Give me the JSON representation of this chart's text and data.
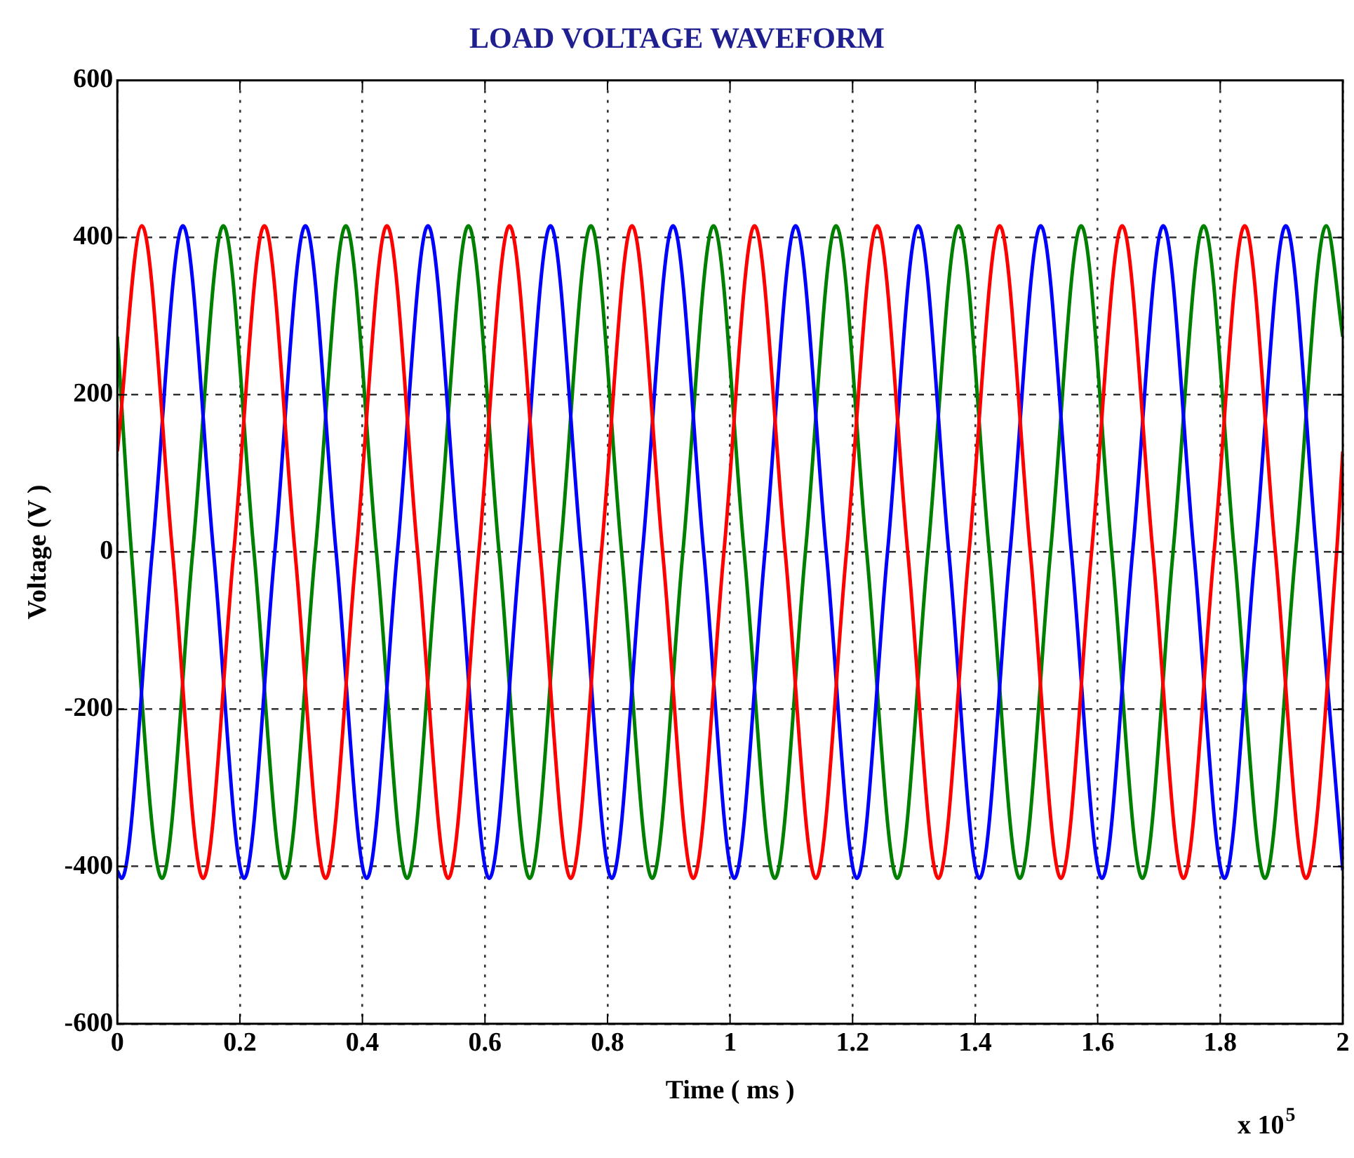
{
  "chart_data": {
    "type": "line",
    "title": "LOAD VOLTAGE WAVEFORM",
    "xlabel": "Time ( ms )",
    "ylabel": "Voltage (V )",
    "annotations": [
      "x 10$^{5}$"
    ],
    "xlim": [
      0,
      2
    ],
    "xticks": [
      0,
      0.2,
      0.4,
      0.6,
      0.8,
      1,
      1.2,
      1.4,
      1.6,
      1.8,
      2
    ],
    "ylim": [
      -600,
      600
    ],
    "yticks": [
      -600,
      -400,
      -200,
      0,
      200,
      400,
      600
    ],
    "grid": true,
    "marker": "none",
    "line_style": "solid",
    "series": [
      {
        "color": "#ff0000",
        "x": [
          0,
          0.04,
          0.09,
          0.14,
          0.19,
          0.24,
          0.29,
          0.34,
          0.39,
          0.44,
          0.49,
          0.54,
          0.59,
          0.64,
          0.69,
          0.74,
          0.79,
          0.84,
          0.89,
          0.94,
          0.99,
          1.04,
          1.09,
          1.14,
          1.19,
          1.24,
          1.29,
          1.34,
          1.39,
          1.44,
          1.49,
          1.54,
          1.59,
          1.64,
          1.69,
          1.74,
          1.79,
          1.84,
          1.89,
          1.94,
          1.99,
          2
        ],
        "values": [
          128,
          415,
          0,
          -415,
          0,
          415,
          0,
          -415,
          0,
          415,
          0,
          -415,
          0,
          415,
          0,
          -415,
          0,
          415,
          0,
          -415,
          0,
          415,
          0,
          -415,
          0,
          415,
          0,
          -415,
          0,
          415,
          0,
          -415,
          0,
          415,
          0,
          -415,
          0,
          415,
          0,
          -415,
          0,
          128
        ]
      },
      {
        "color": "#0000ff",
        "x": [
          0,
          0.007,
          0.057,
          0.107,
          0.157,
          0.207,
          0.257,
          0.307,
          0.357,
          0.407,
          0.457,
          0.507,
          0.557,
          0.607,
          0.657,
          0.707,
          0.757,
          0.807,
          0.857,
          0.907,
          0.957,
          1.007,
          1.057,
          1.107,
          1.157,
          1.207,
          1.257,
          1.307,
          1.357,
          1.407,
          1.457,
          1.507,
          1.557,
          1.607,
          1.657,
          1.707,
          1.757,
          1.807,
          1.857,
          1.907,
          1.957,
          2
        ],
        "values": [
          -405,
          -415,
          0,
          415,
          0,
          -415,
          0,
          415,
          0,
          -415,
          0,
          415,
          0,
          -415,
          0,
          415,
          0,
          -415,
          0,
          415,
          0,
          -415,
          0,
          415,
          0,
          -415,
          0,
          415,
          0,
          -415,
          0,
          415,
          0,
          -415,
          0,
          415,
          0,
          -415,
          0,
          415,
          0,
          -405
        ]
      },
      {
        "color": "#008000",
        "x": [
          0,
          0.023,
          0.073,
          0.123,
          0.173,
          0.223,
          0.273,
          0.323,
          0.373,
          0.423,
          0.473,
          0.523,
          0.573,
          0.623,
          0.673,
          0.723,
          0.773,
          0.823,
          0.873,
          0.923,
          0.973,
          1.023,
          1.073,
          1.123,
          1.173,
          1.223,
          1.273,
          1.323,
          1.373,
          1.423,
          1.473,
          1.523,
          1.573,
          1.623,
          1.673,
          1.723,
          1.773,
          1.823,
          1.873,
          1.923,
          1.973,
          2
        ],
        "values": [
          274,
          0,
          -415,
          0,
          415,
          0,
          -415,
          0,
          415,
          0,
          -415,
          0,
          415,
          0,
          -415,
          0,
          415,
          0,
          -415,
          0,
          415,
          0,
          -415,
          0,
          415,
          0,
          -415,
          0,
          415,
          0,
          -415,
          0,
          415,
          0,
          -415,
          0,
          415,
          0,
          -415,
          0,
          415,
          274
        ]
      }
    ]
  }
}
